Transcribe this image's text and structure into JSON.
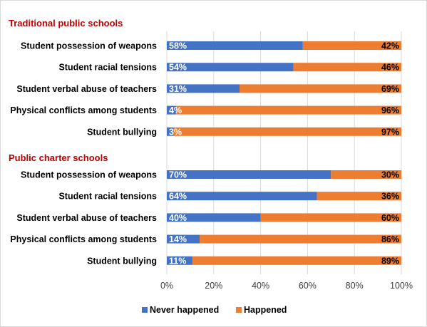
{
  "chart_data": {
    "type": "bar",
    "orientation": "horizontal",
    "stacked": true,
    "xlim": [
      0,
      100
    ],
    "ticks": [
      "0%",
      "20%",
      "40%",
      "60%",
      "80%",
      "100%"
    ],
    "grid": true,
    "legend_position": "bottom",
    "colors": {
      "never": "#4472c4",
      "happened": "#ed7d31",
      "group_title": "#c00000"
    },
    "series_names": [
      "Never happened",
      "Happened"
    ],
    "groups": [
      {
        "title": "Traditional public schools",
        "categories": [
          {
            "label": "Student possession of weapons",
            "never": 58,
            "happened": 42,
            "never_label": "58%",
            "happened_label": "42%"
          },
          {
            "label": "Student racial tensions",
            "never": 54,
            "happened": 46,
            "never_label": "54%",
            "happened_label": "46%"
          },
          {
            "label": "Student verbal abuse of teachers",
            "never": 31,
            "happened": 69,
            "never_label": "31%",
            "happened_label": "69%"
          },
          {
            "label": "Physical conflicts among students",
            "never": 4,
            "happened": 96,
            "never_label": "4%",
            "happened_label": "96%"
          },
          {
            "label": "Student bullying",
            "never": 3,
            "happened": 97,
            "never_label": "3%",
            "happened_label": "97%"
          }
        ]
      },
      {
        "title": "Public charter schools",
        "categories": [
          {
            "label": "Student possession of weapons",
            "never": 70,
            "happened": 30,
            "never_label": "70%",
            "happened_label": "30%"
          },
          {
            "label": "Student racial tensions",
            "never": 64,
            "happened": 36,
            "never_label": "64%",
            "happened_label": "36%"
          },
          {
            "label": "Student verbal abuse of teachers",
            "never": 40,
            "happened": 60,
            "never_label": "40%",
            "happened_label": "60%"
          },
          {
            "label": "Physical conflicts among students",
            "never": 14,
            "happened": 86,
            "never_label": "14%",
            "happened_label": "86%"
          },
          {
            "label": "Student bullying",
            "never": 11,
            "happened": 89,
            "never_label": "11%",
            "happened_label": "89%"
          }
        ]
      }
    ]
  }
}
